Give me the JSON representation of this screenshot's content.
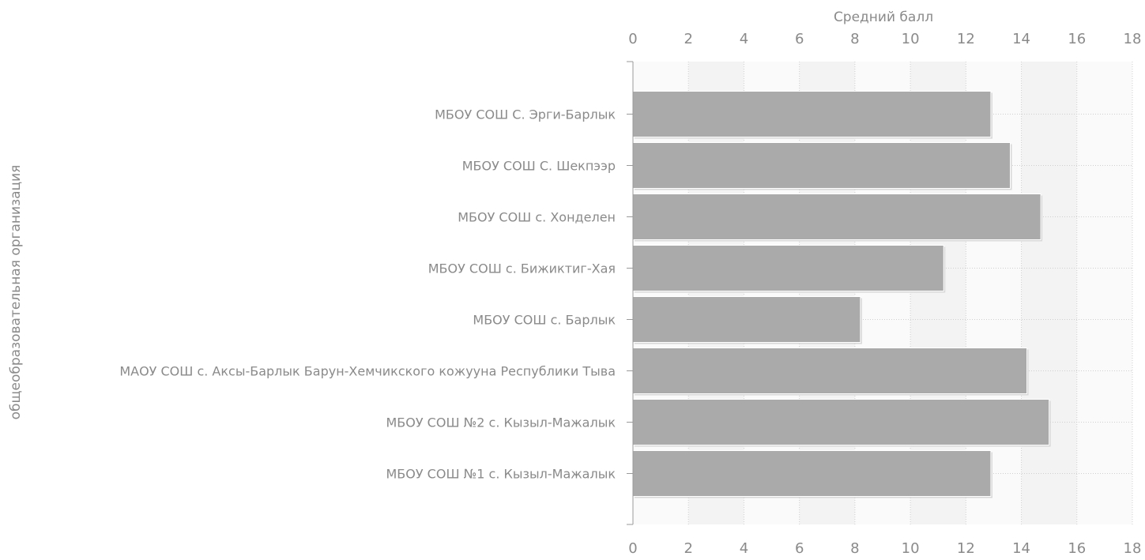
{
  "chart_data": {
    "type": "bar",
    "orientation": "horizontal",
    "xlabel": "Средний балл",
    "ylabel": "общеобразовательная организация",
    "xlim": [
      0,
      18
    ],
    "xticks": [
      0,
      2,
      4,
      6,
      8,
      10,
      12,
      14,
      16,
      18
    ],
    "tick_labels": [
      "0",
      "2",
      "4",
      "6",
      "8",
      "10",
      "12",
      "14",
      "16",
      "18"
    ],
    "grid": true,
    "categories": [
      "МБОУ СОШ С. Эрги-Барлык",
      "МБОУ СОШ С. Шекпээр",
      "МБОУ СОШ с. Хонделен",
      "МБОУ СОШ с. Бижиктиг-Хая",
      "МБОУ СОШ с. Барлык",
      "МАОУ СОШ с. Аксы-Барлык Барун-Хемчикского кожууна Республики Тыва",
      "МБОУ СОШ №2 с. Кызыл-Мажалык",
      "МБОУ СОШ №1 с. Кызыл-Мажалык"
    ],
    "values": [
      12.9,
      13.6,
      14.7,
      11.2,
      8.2,
      14.2,
      15.0,
      12.9
    ],
    "colors": {
      "bar": "#aaaaaa",
      "bar_edge": "#ffffff",
      "text": "#8a8a8a",
      "axis": "#9a9a9a",
      "grid": "#cfcfcf",
      "band_light": "#fafafa",
      "band_dark": "#f3f3f3"
    }
  }
}
